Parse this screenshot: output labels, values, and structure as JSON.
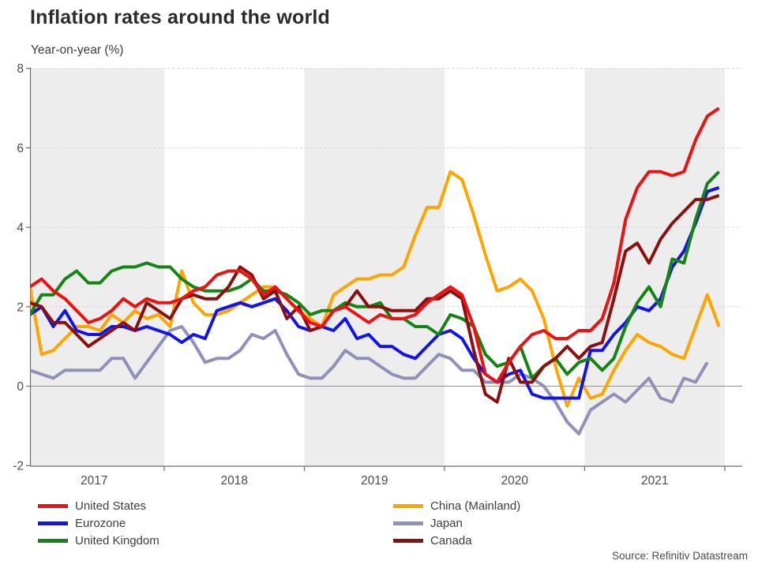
{
  "title": "Inflation rates around the world",
  "subtitle": "Year-on-year (%)",
  "source": "Source: Refinitiv Datastream",
  "chart_data": {
    "type": "line",
    "frequency": "monthly",
    "x_start": "2017-01",
    "x_end": "2021-12",
    "x_tick_labels": [
      "2017",
      "2018",
      "2019",
      "2020",
      "2021"
    ],
    "ylim": [
      -2,
      8
    ],
    "yticks": [
      8,
      6,
      4,
      2,
      0,
      -2
    ],
    "grid": "horizontal-dashed",
    "zero_line": true,
    "background_bands": "alternate years shaded grey starting 2017",
    "band_color": "#ededed",
    "legend_position": "bottom-two-columns",
    "series": [
      {
        "name": "United States",
        "color": "#ee1111",
        "start": "2017-01",
        "end": "2021-12",
        "values": [
          2.5,
          2.7,
          2.4,
          2.2,
          1.9,
          1.6,
          1.7,
          1.9,
          2.2,
          2.0,
          2.2,
          2.1,
          2.1,
          2.2,
          2.4,
          2.5,
          2.8,
          2.9,
          2.9,
          2.7,
          2.3,
          2.5,
          2.2,
          1.9,
          1.6,
          1.5,
          1.9,
          2.0,
          1.8,
          1.6,
          1.8,
          1.7,
          1.7,
          1.8,
          2.1,
          2.3,
          2.5,
          2.3,
          1.5,
          0.3,
          0.1,
          0.6,
          1.0,
          1.3,
          1.4,
          1.2,
          1.2,
          1.4,
          1.4,
          1.7,
          2.6,
          4.2,
          5.0,
          5.4,
          5.4,
          5.3,
          5.4,
          6.2,
          6.8,
          7.0
        ]
      },
      {
        "name": "Eurozone",
        "color": "#1414e8",
        "start": "2017-01",
        "end": "2021-12",
        "values": [
          1.8,
          2.0,
          1.5,
          1.9,
          1.4,
          1.3,
          1.3,
          1.5,
          1.5,
          1.4,
          1.5,
          1.4,
          1.3,
          1.1,
          1.3,
          1.2,
          1.9,
          2.0,
          2.1,
          2.0,
          2.1,
          2.2,
          1.9,
          1.5,
          1.4,
          1.5,
          1.4,
          1.7,
          1.2,
          1.3,
          1.0,
          1.0,
          0.8,
          0.7,
          1.0,
          1.3,
          1.4,
          1.2,
          0.7,
          0.3,
          0.1,
          0.3,
          0.4,
          -0.2,
          -0.3,
          -0.3,
          -0.3,
          -0.3,
          0.9,
          0.9,
          1.3,
          1.6,
          2.0,
          1.9,
          2.2,
          3.0,
          3.4,
          4.1,
          4.9,
          5.0
        ]
      },
      {
        "name": "United Kingdom",
        "color": "#148514",
        "start": "2017-01",
        "end": "2021-12",
        "values": [
          1.8,
          2.3,
          2.3,
          2.7,
          2.9,
          2.6,
          2.6,
          2.9,
          3.0,
          3.0,
          3.1,
          3.0,
          3.0,
          2.7,
          2.5,
          2.4,
          2.4,
          2.4,
          2.5,
          2.7,
          2.4,
          2.4,
          2.3,
          2.1,
          1.8,
          1.9,
          1.9,
          2.1,
          2.0,
          2.0,
          2.1,
          1.7,
          1.7,
          1.5,
          1.5,
          1.3,
          1.8,
          1.7,
          1.5,
          0.8,
          0.5,
          0.6,
          1.0,
          0.2,
          0.5,
          0.7,
          0.3,
          0.6,
          0.7,
          0.4,
          0.7,
          1.5,
          2.1,
          2.5,
          2.0,
          3.2,
          3.1,
          4.2,
          5.1,
          5.4
        ]
      },
      {
        "name": "China (Mainland)",
        "color": "#ffa500",
        "start": "2017-01",
        "end": "2021-12",
        "values": [
          2.5,
          0.8,
          0.9,
          1.2,
          1.5,
          1.5,
          1.4,
          1.8,
          1.6,
          1.9,
          1.7,
          1.8,
          1.5,
          2.9,
          2.1,
          1.8,
          1.8,
          1.9,
          2.1,
          2.3,
          2.5,
          2.5,
          2.2,
          1.9,
          1.7,
          1.5,
          2.3,
          2.5,
          2.7,
          2.7,
          2.8,
          2.8,
          3.0,
          3.8,
          4.5,
          4.5,
          5.4,
          5.2,
          4.3,
          3.3,
          2.4,
          2.5,
          2.7,
          2.4,
          1.7,
          0.5,
          -0.5,
          0.2,
          -0.3,
          -0.2,
          0.4,
          0.9,
          1.3,
          1.1,
          1.0,
          0.8,
          0.7,
          1.5,
          2.3,
          1.5
        ]
      },
      {
        "name": "Japan",
        "color": "#9090b8",
        "start": "2017-01",
        "end": "2021-11",
        "values": [
          0.4,
          0.3,
          0.2,
          0.4,
          0.4,
          0.4,
          0.4,
          0.7,
          0.7,
          0.2,
          0.6,
          1.0,
          1.4,
          1.5,
          1.1,
          0.6,
          0.7,
          0.7,
          0.9,
          1.3,
          1.2,
          1.4,
          0.8,
          0.3,
          0.2,
          0.2,
          0.5,
          0.9,
          0.7,
          0.7,
          0.5,
          0.3,
          0.2,
          0.2,
          0.5,
          0.8,
          0.7,
          0.4,
          0.4,
          0.1,
          0.1,
          0.1,
          0.3,
          0.2,
          0.0,
          -0.4,
          -0.9,
          -1.2,
          -0.6,
          -0.4,
          -0.2,
          -0.4,
          -0.1,
          0.2,
          -0.3,
          -0.4,
          0.2,
          0.1,
          0.6
        ]
      },
      {
        "name": "Canada",
        "color": "#8b0f0f",
        "start": "2017-01",
        "end": "2021-12",
        "values": [
          2.1,
          2.0,
          1.6,
          1.6,
          1.3,
          1.0,
          1.2,
          1.4,
          1.6,
          1.4,
          2.1,
          1.9,
          1.7,
          2.2,
          2.3,
          2.2,
          2.2,
          2.5,
          3.0,
          2.8,
          2.2,
          2.4,
          1.7,
          2.0,
          1.4,
          1.5,
          1.9,
          2.0,
          2.4,
          2.0,
          2.0,
          1.9,
          1.9,
          1.9,
          2.2,
          2.2,
          2.4,
          2.2,
          0.9,
          -0.2,
          -0.4,
          0.7,
          0.1,
          0.1,
          0.5,
          0.7,
          1.0,
          0.7,
          1.0,
          1.1,
          2.2,
          3.4,
          3.6,
          3.1,
          3.7,
          4.1,
          4.4,
          4.7,
          4.7,
          4.8
        ]
      }
    ]
  }
}
